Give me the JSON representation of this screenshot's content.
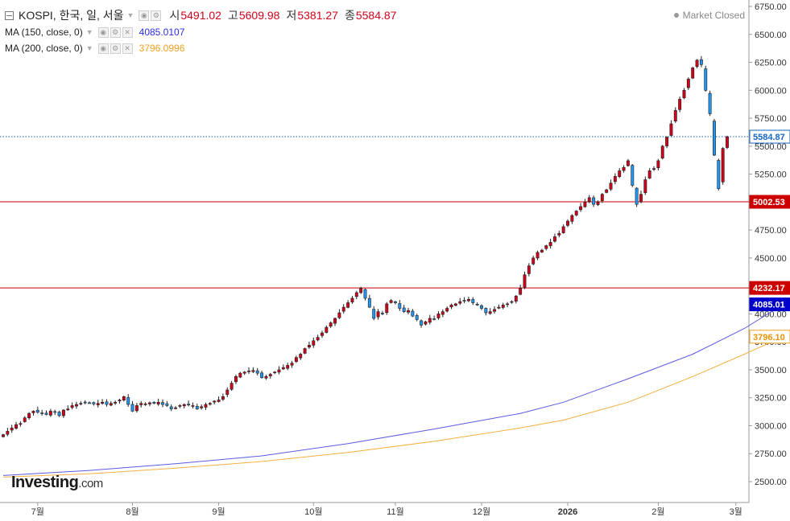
{
  "legend": {
    "symbol": "KOSPI, 한국, 일, 서울",
    "open_label": "시",
    "open": "5491.02",
    "high_label": "고",
    "high": "5609.98",
    "low_label": "저",
    "low": "5381.27",
    "close_label": "종",
    "close": "5584.87",
    "ma150_label": "MA (150, close, 0)",
    "ma150_value": "4085.0107",
    "ma200_label": "MA (200, close, 0)",
    "ma200_value": "3796.0996"
  },
  "status": "Market Closed",
  "watermark": {
    "brand": "Investing",
    "suffix": ".com"
  },
  "colors": {
    "up": "#d0021b",
    "down": "#2196f3",
    "ma150": "#5a5adf",
    "ma200": "#f5b041",
    "hline": "#cc0000",
    "price_line": "#1565c0",
    "axis": "#555555"
  },
  "chart_data": {
    "type": "candlestick",
    "ylim": [
      2400,
      6750
    ],
    "y_ticks": [
      2500,
      2750,
      3000,
      3250,
      3500,
      3750,
      4000,
      4250,
      4500,
      4750,
      5000,
      5250,
      5500,
      5750,
      6000,
      6250,
      6500,
      6750
    ],
    "y_tick_labels": [
      "2500.00",
      "2750.00",
      "3000.00",
      "3250.00",
      "3500.00",
      "3750.00",
      "4000.00",
      "4250.00",
      "4500.00",
      "4750.00",
      "5000.00",
      "5250.00",
      "5500.00",
      "5750.00",
      "6000.00",
      "6250.00",
      "6500.00",
      "6750.00"
    ],
    "x_labels": [
      "7월",
      "8월",
      "9월",
      "10월",
      "11월",
      "12월",
      "2026",
      "2월",
      "3월"
    ],
    "x_label_index": [
      8,
      30,
      50,
      72,
      91,
      111,
      131,
      152,
      170
    ],
    "price_labels": [
      {
        "value": 5584.87,
        "text": "5584.87",
        "kind": "last"
      },
      {
        "value": 5002.53,
        "text": "5002.53",
        "kind": "hline"
      },
      {
        "value": 4232.17,
        "text": "4232.17",
        "kind": "hline"
      },
      {
        "value": 4085.01,
        "text": "4085.01",
        "kind": "ma150"
      },
      {
        "value": 3796.1,
        "text": "3796.10",
        "kind": "ma200"
      }
    ],
    "horizontal_lines": [
      5002.53,
      4232.17
    ],
    "close": [
      2920,
      2950,
      2980,
      3010,
      3020,
      3070,
      3110,
      3130,
      3120,
      3110,
      3100,
      3130,
      3120,
      3090,
      3140,
      3150,
      3180,
      3190,
      3200,
      3210,
      3205,
      3195,
      3200,
      3210,
      3190,
      3200,
      3210,
      3230,
      3260,
      3190,
      3130,
      3180,
      3200,
      3195,
      3205,
      3200,
      3210,
      3190,
      3180,
      3150,
      3160,
      3180,
      3190,
      3185,
      3180,
      3150,
      3170,
      3190,
      3200,
      3220,
      3230,
      3260,
      3320,
      3380,
      3440,
      3470,
      3480,
      3490,
      3495,
      3470,
      3430,
      3440,
      3460,
      3480,
      3500,
      3520,
      3540,
      3560,
      3610,
      3640,
      3690,
      3720,
      3760,
      3790,
      3830,
      3880,
      3920,
      3960,
      4010,
      4060,
      4100,
      4140,
      4190,
      4230,
      4140,
      4060,
      3960,
      4020,
      4000,
      4090,
      4120,
      4100,
      4050,
      4020,
      4030,
      3980,
      3950,
      3900,
      3930,
      3960,
      3950,
      4000,
      4020,
      4050,
      4080,
      4090,
      4110,
      4120,
      4130,
      4100,
      4080,
      4050,
      4010,
      4020,
      4040,
      4060,
      4080,
      4090,
      4110,
      4160,
      4230,
      4350,
      4430,
      4500,
      4550,
      4570,
      4610,
      4640,
      4690,
      4720,
      4780,
      4830,
      4880,
      4920,
      4960,
      5000,
      5040,
      4980,
      5000,
      5070,
      5110,
      5170,
      5230,
      5280,
      5310,
      5370,
      5150,
      4980,
      5070,
      5200,
      5280,
      5300,
      5370,
      5500,
      5580,
      5700,
      5820,
      5920,
      6000,
      6100,
      6200,
      6270,
      6230,
      6000,
      5790,
      5420,
      5120,
      5480,
      5584.87
    ],
    "ma150_points": [
      [
        0,
        2555
      ],
      [
        20,
        2600
      ],
      [
        40,
        2660
      ],
      [
        60,
        2730
      ],
      [
        80,
        2840
      ],
      [
        100,
        2970
      ],
      [
        120,
        3110
      ],
      [
        130,
        3210
      ],
      [
        145,
        3420
      ],
      [
        160,
        3640
      ],
      [
        172,
        3870
      ],
      [
        181,
        4085.01
      ]
    ],
    "ma200_points": [
      [
        0,
        2540
      ],
      [
        20,
        2570
      ],
      [
        40,
        2620
      ],
      [
        60,
        2680
      ],
      [
        80,
        2760
      ],
      [
        100,
        2860
      ],
      [
        120,
        2980
      ],
      [
        130,
        3050
      ],
      [
        145,
        3210
      ],
      [
        160,
        3440
      ],
      [
        172,
        3640
      ],
      [
        181,
        3796.1
      ]
    ]
  }
}
